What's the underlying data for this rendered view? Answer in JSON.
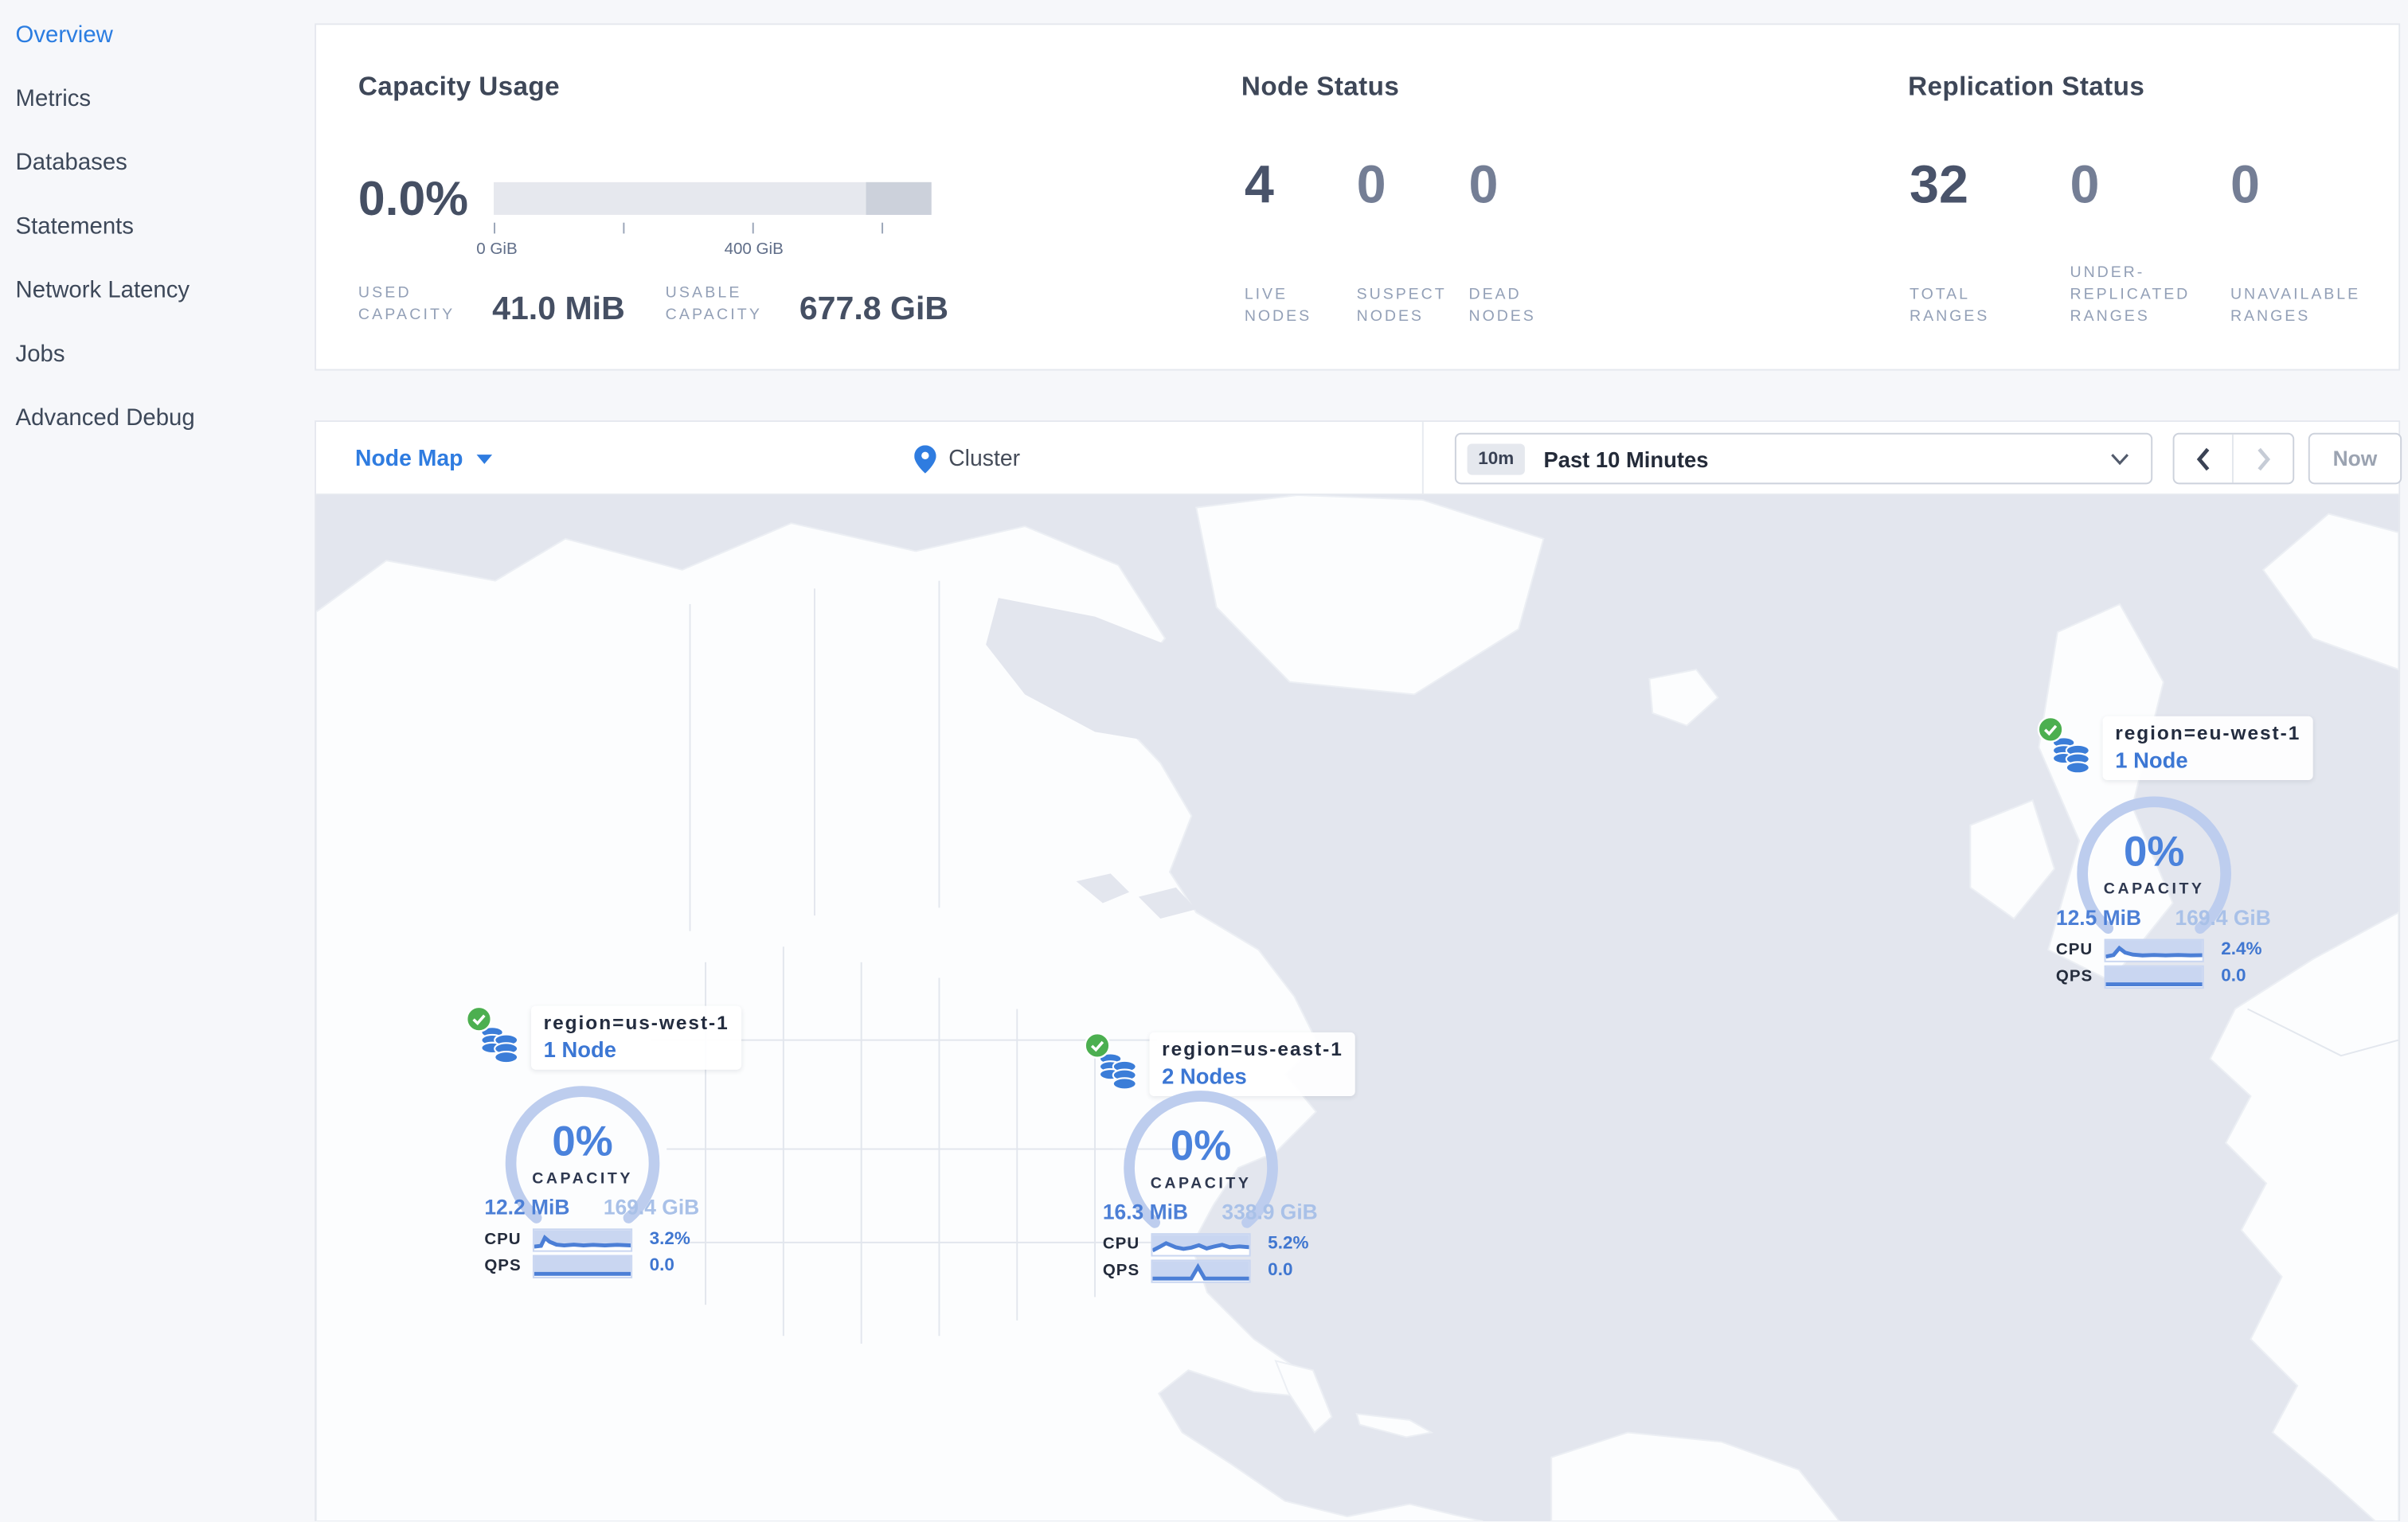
{
  "sidebar": {
    "items": [
      {
        "label": "Overview",
        "active": true
      },
      {
        "label": "Metrics",
        "active": false
      },
      {
        "label": "Databases",
        "active": false
      },
      {
        "label": "Statements",
        "active": false
      },
      {
        "label": "Network Latency",
        "active": false
      },
      {
        "label": "Jobs",
        "active": false
      },
      {
        "label": "Advanced Debug",
        "active": false
      }
    ]
  },
  "summary": {
    "capacity": {
      "title": "Capacity Usage",
      "percent": "0.0%",
      "tick_labels": [
        "0 GiB",
        "400 GiB"
      ],
      "used_label": "USED CAPACITY",
      "used_value": "41.0 MiB",
      "usable_label": "USABLE CAPACITY",
      "usable_value": "677.8 GiB"
    },
    "node_status": {
      "title": "Node Status",
      "live": {
        "value": "4",
        "label": "LIVE NODES"
      },
      "suspect": {
        "value": "0",
        "label": "SUSPECT NODES"
      },
      "dead": {
        "value": "0",
        "label": "DEAD NODES"
      }
    },
    "replication": {
      "title": "Replication Status",
      "total": {
        "value": "32",
        "label": "TOTAL RANGES"
      },
      "under_replicated": {
        "value": "0",
        "label": "UNDER-REPLICATED RANGES"
      },
      "unavailable": {
        "value": "0",
        "label": "UNAVAILABLE RANGES"
      }
    }
  },
  "toolbar": {
    "view": "Node Map",
    "breadcrumb": "Cluster",
    "time_badge": "10m",
    "time_range": "Past 10 Minutes",
    "now": "Now"
  },
  "map": {
    "regions": [
      {
        "name": "region=us-west-1",
        "nodes": "1 Node",
        "percent": "0%",
        "capacity_label": "CAPACITY",
        "used": "12.2 MiB",
        "capacity": "169.4 GiB",
        "cpu_label": "CPU",
        "cpu_value": "3.2%",
        "qps_label": "QPS",
        "qps_value": "0.0",
        "cpu_spark": [
          [
            0,
            82
          ],
          [
            7,
            78
          ],
          [
            11,
            38
          ],
          [
            16,
            58
          ],
          [
            23,
            72
          ],
          [
            31,
            76
          ],
          [
            41,
            72
          ],
          [
            51,
            76
          ],
          [
            61,
            73
          ],
          [
            73,
            76
          ],
          [
            86,
            73
          ],
          [
            100,
            76
          ]
        ],
        "qps_spark": [
          [
            0,
            86
          ],
          [
            100,
            86
          ]
        ]
      },
      {
        "name": "region=us-east-1",
        "nodes": "2 Nodes",
        "percent": "0%",
        "capacity_label": "CAPACITY",
        "used": "16.3 MiB",
        "capacity": "338.9 GiB",
        "cpu_label": "CPU",
        "cpu_value": "5.2%",
        "qps_label": "QPS",
        "qps_value": "0.0",
        "cpu_spark": [
          [
            0,
            78
          ],
          [
            8,
            58
          ],
          [
            14,
            42
          ],
          [
            24,
            62
          ],
          [
            32,
            70
          ],
          [
            40,
            64
          ],
          [
            48,
            52
          ],
          [
            56,
            68
          ],
          [
            64,
            58
          ],
          [
            72,
            50
          ],
          [
            80,
            62
          ],
          [
            90,
            58
          ],
          [
            100,
            62
          ]
        ],
        "qps_spark": [
          [
            0,
            86
          ],
          [
            40,
            86
          ],
          [
            47,
            28
          ],
          [
            54,
            86
          ],
          [
            100,
            86
          ]
        ]
      },
      {
        "name": "region=eu-west-1",
        "nodes": "1 Node",
        "percent": "0%",
        "capacity_label": "CAPACITY",
        "used": "12.5 MiB",
        "capacity": "169.4 GiB",
        "cpu_label": "CPU",
        "cpu_value": "2.4%",
        "qps_label": "QPS",
        "qps_value": "0.0",
        "cpu_spark": [
          [
            0,
            80
          ],
          [
            8,
            72
          ],
          [
            14,
            38
          ],
          [
            20,
            60
          ],
          [
            28,
            70
          ],
          [
            38,
            74
          ],
          [
            50,
            72
          ],
          [
            62,
            74
          ],
          [
            75,
            72
          ],
          [
            88,
            74
          ],
          [
            100,
            73
          ]
        ],
        "qps_spark": [
          [
            0,
            86
          ],
          [
            100,
            86
          ]
        ]
      }
    ]
  },
  "colors": {
    "accent_blue": "#2f7ce0",
    "marker_blue": "#4a82dc",
    "arc_blue": "#bdcdee",
    "pale_value_blue": "#a9c1e8",
    "healthy_green": "#4caf50",
    "ocean": "#e3e6ee",
    "land": "#fcfdfe"
  }
}
